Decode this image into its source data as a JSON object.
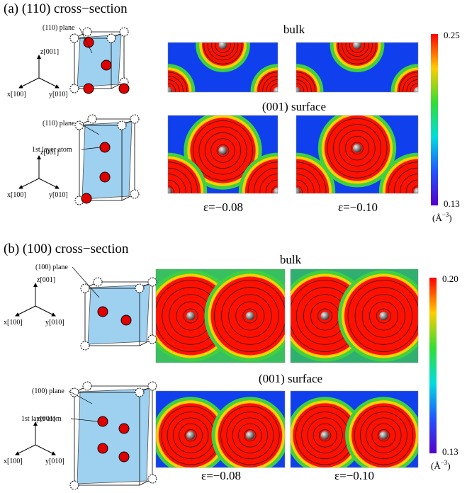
{
  "panels": [
    {
      "title": "(a) (110) cross−section",
      "bulk_label": "bulk",
      "surface_label": "(001) surface",
      "structures": [
        {
          "plane_label": "(110) plane",
          "axes": {
            "z": "z[001]",
            "x": "x[100]",
            "y": "y[010]"
          }
        },
        {
          "plane_label": "(110) plane",
          "layer_label": "1st layer atom",
          "axes": {
            "z": "z[001]",
            "x": "x[100]",
            "y": "y[010]"
          }
        }
      ],
      "strain_labels": [
        "ε=−0.08",
        "ε=−0.10"
      ],
      "colorbar": {
        "max": "0.25",
        "min": "0.13",
        "unit": {
          "base": "(Å",
          "sup": "−3",
          "close": ")"
        }
      }
    },
    {
      "title": "(b) (100) cross−section",
      "bulk_label": "bulk",
      "surface_label": "(001) surface",
      "structures": [
        {
          "plane_label": "(100) plane",
          "axes": {
            "z": "z[001]",
            "x": "x[100]",
            "y": "y[010]"
          }
        },
        {
          "plane_label": "(100) plane",
          "layer_label": "1st layer atom",
          "axes": {
            "z": "z[001]",
            "x": "x[100]",
            "y": "y[010]"
          }
        }
      ],
      "strain_labels": [
        "ε=−0.08",
        "ε=−0.10"
      ],
      "colorbar": {
        "max": "0.20",
        "min": "0.13",
        "unit": {
          "base": "(Å",
          "sup": "−3",
          "close": ")"
        }
      }
    }
  ]
}
